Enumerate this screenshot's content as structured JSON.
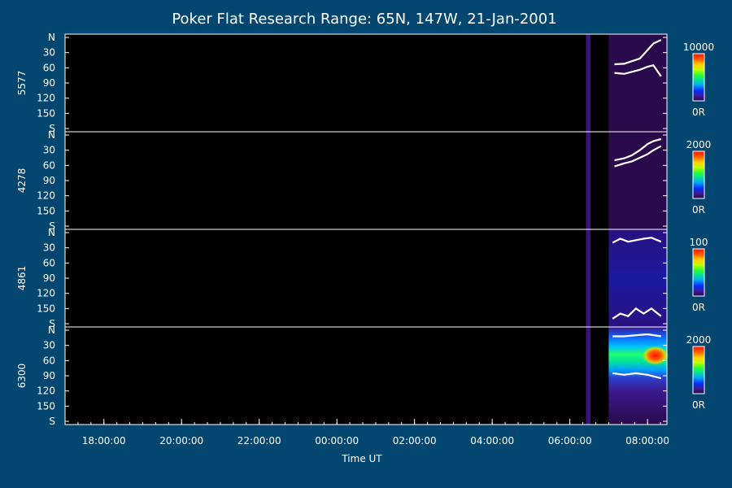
{
  "chart_data": {
    "type": "heatmap",
    "title": "Poker Flat Research Range: 65N, 147W, 21-Jan-2001",
    "xlabel": "Time UT",
    "x_range": [
      "17:00:00",
      "08:30:00"
    ],
    "x_ticks": [
      "18:00:00",
      "20:00:00",
      "22:00:00",
      "00:00:00",
      "02:00:00",
      "04:00:00",
      "06:00:00",
      "08:00:00"
    ],
    "y_ticks": [
      "N",
      "30",
      "60",
      "90",
      "120",
      "150",
      "S"
    ],
    "y_range": [
      0,
      180
    ],
    "panels": [
      {
        "channel": "5577",
        "colorbar_max": "10000",
        "colorbar_min": "0R",
        "data_segments": [
          [
            "06:25:00",
            "06:32:00"
          ],
          [
            "07:00:00",
            "08:30:00"
          ]
        ],
        "contour_upper": [
          [
            7.15,
            53
          ],
          [
            7.4,
            52
          ],
          [
            7.6,
            47
          ],
          [
            7.8,
            42
          ],
          [
            8.0,
            25
          ],
          [
            8.15,
            12
          ],
          [
            8.35,
            5
          ]
        ],
        "contour_lower": [
          [
            7.15,
            70
          ],
          [
            7.4,
            72
          ],
          [
            7.6,
            68
          ],
          [
            7.8,
            64
          ],
          [
            8.0,
            58
          ],
          [
            8.15,
            55
          ],
          [
            8.35,
            77
          ]
        ]
      },
      {
        "channel": "4278",
        "colorbar_max": "2000",
        "colorbar_min": "0R",
        "data_segments": [
          [
            "06:25:00",
            "06:32:00"
          ],
          [
            "07:00:00",
            "08:30:00"
          ]
        ],
        "contour_upper": [
          [
            7.15,
            50
          ],
          [
            7.4,
            46
          ],
          [
            7.6,
            40
          ],
          [
            7.8,
            30
          ],
          [
            8.0,
            18
          ],
          [
            8.15,
            12
          ],
          [
            8.35,
            8
          ]
        ],
        "contour_lower": [
          [
            7.15,
            62
          ],
          [
            7.4,
            56
          ],
          [
            7.6,
            52
          ],
          [
            7.8,
            45
          ],
          [
            8.0,
            38
          ],
          [
            8.15,
            30
          ],
          [
            8.35,
            22
          ]
        ]
      },
      {
        "channel": "4861",
        "colorbar_max": "100",
        "colorbar_min": "0R",
        "data_segments": [
          [
            "06:25:00",
            "06:32:00"
          ],
          [
            "07:00:00",
            "08:30:00"
          ]
        ],
        "contour_upper": [
          [
            7.1,
            20
          ],
          [
            7.3,
            12
          ],
          [
            7.5,
            18
          ],
          [
            7.7,
            15
          ],
          [
            7.9,
            12
          ],
          [
            8.1,
            10
          ],
          [
            8.35,
            18
          ]
        ],
        "contour_lower": [
          [
            7.1,
            170
          ],
          [
            7.3,
            160
          ],
          [
            7.5,
            165
          ],
          [
            7.7,
            150
          ],
          [
            7.9,
            160
          ],
          [
            8.1,
            150
          ],
          [
            8.35,
            165
          ]
        ]
      },
      {
        "channel": "6300",
        "colorbar_max": "2000",
        "colorbar_min": "0R",
        "data_segments": [
          [
            "06:25:00",
            "06:32:00"
          ],
          [
            "07:00:00",
            "08:30:00"
          ]
        ],
        "peak_region": {
          "x": [
            7.6,
            8.3
          ],
          "y": [
            40,
            60
          ]
        },
        "contour_upper": [
          [
            7.1,
            12
          ],
          [
            7.4,
            12
          ],
          [
            7.7,
            10
          ],
          [
            8.0,
            8
          ],
          [
            8.35,
            12
          ]
        ],
        "contour_lower": [
          [
            7.1,
            85
          ],
          [
            7.4,
            88
          ],
          [
            7.7,
            85
          ],
          [
            8.0,
            88
          ],
          [
            8.35,
            95
          ]
        ]
      }
    ],
    "colormap": [
      "#2a0a3a",
      "#3a1aa0",
      "#0030ff",
      "#00a0ff",
      "#00e0a0",
      "#30ff30",
      "#c0ff00",
      "#ffd000",
      "#ff6000",
      "#ff1000"
    ],
    "colors": {
      "background": "#034670",
      "plot": "#000000",
      "axes": "#ffffff",
      "contour": "#ffffff"
    }
  }
}
